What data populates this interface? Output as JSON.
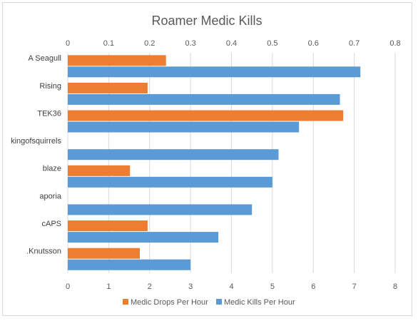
{
  "chart_data": {
    "type": "bar",
    "orientation": "horizontal",
    "title": "Roamer Medic Kills",
    "categories": [
      "A Seagull",
      "Rising",
      "TEK36",
      "kingofsquirrels",
      "blaze",
      "aporia",
      "cAPS",
      ".Knutsson"
    ],
    "series": [
      {
        "name": "Medic Drops Per Hour",
        "axis": "top",
        "color": "#ED7D31",
        "values": [
          0.24,
          0.195,
          0.673,
          null,
          0.152,
          null,
          0.195,
          0.176
        ]
      },
      {
        "name": "Medic Kills Per Hour",
        "axis": "bottom",
        "color": "#5B9BD5",
        "values": [
          7.15,
          6.65,
          5.65,
          5.15,
          5.0,
          4.5,
          3.68,
          3.0
        ]
      }
    ],
    "top_axis": {
      "range": [
        0,
        0.8
      ],
      "ticks": [
        "0",
        "0.1",
        "0.2",
        "0.3",
        "0.4",
        "0.5",
        "0.6",
        "0.7",
        "0.8"
      ]
    },
    "bottom_axis": {
      "range": [
        0,
        8
      ],
      "ticks": [
        "0",
        "1",
        "2",
        "3",
        "4",
        "5",
        "6",
        "7",
        "8"
      ]
    },
    "grid": true,
    "legend_position": "bottom"
  }
}
